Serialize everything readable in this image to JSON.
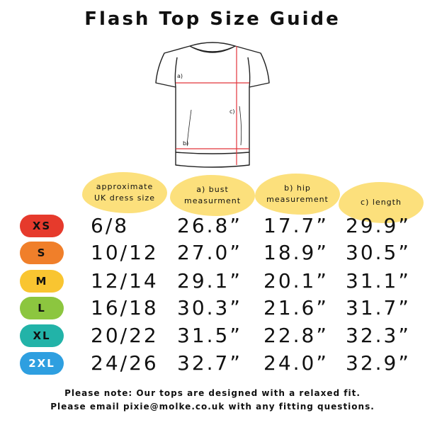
{
  "title": "Flash Top Size Guide",
  "diagram": {
    "label_a": "a)",
    "label_b": "b)",
    "label_c": "c)"
  },
  "headers": [
    "approximate\nUK dress size",
    "a) bust\nmeasurment",
    "b) hip\nmeasurement",
    "c) length"
  ],
  "sizes": [
    {
      "label": "XS",
      "color": "#e63a2c",
      "text_color": "#111111",
      "uk": "6/8",
      "bust": "26.8”",
      "hip": "17.7”",
      "length": "29.9”"
    },
    {
      "label": "S",
      "color": "#f07f2a",
      "text_color": "#111111",
      "uk": "10/12",
      "bust": "27.0”",
      "hip": "18.9”",
      "length": "30.5”"
    },
    {
      "label": "M",
      "color": "#f9c531",
      "text_color": "#111111",
      "uk": "12/14",
      "bust": "29.1”",
      "hip": "20.1”",
      "length": "31.1”"
    },
    {
      "label": "L",
      "color": "#8cc63f",
      "text_color": "#111111",
      "uk": "16/18",
      "bust": "30.3”",
      "hip": "21.6”",
      "length": "31.7”"
    },
    {
      "label": "XL",
      "color": "#22b3a8",
      "text_color": "#111111",
      "uk": "20/22",
      "bust": "31.5”",
      "hip": "22.8”",
      "length": "32.3”"
    },
    {
      "label": "2XL",
      "color": "#2e9fe0",
      "text_color": "#ffffff",
      "uk": "24/26",
      "bust": "32.7”",
      "hip": "24.0”",
      "length": "32.9”"
    }
  ],
  "notes": [
    "Please note: Our tops are designed with a relaxed fit.",
    "Please email pixie@molke.co.uk with any fitting questions."
  ],
  "colors": {
    "header_blob": "#fce07c",
    "measure_line": "#e2343b",
    "outline": "#222222"
  }
}
